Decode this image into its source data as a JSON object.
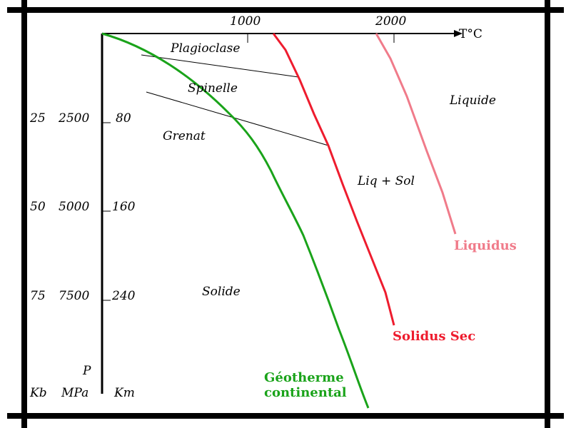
{
  "axes": {
    "temp_label": "T°C",
    "temp_tick_1000": "1000",
    "temp_tick_2000": "2000",
    "pressure_label": "P",
    "unit_kb": "Kb",
    "unit_mpa": "MPa",
    "unit_km": "Km",
    "rows": [
      {
        "kb": "25",
        "mpa": "2500",
        "km": "80"
      },
      {
        "kb": "50",
        "mpa": "5000",
        "km": "160"
      },
      {
        "kb": "75",
        "mpa": "7500",
        "km": "240"
      }
    ]
  },
  "fields": {
    "plagioclase": "Plagioclase",
    "spinelle": "Spinelle",
    "grenat": "Grenat",
    "liquide": "Liquide",
    "liq_sol": "Liq + Sol",
    "solide": "Solide"
  },
  "curves": {
    "liquidus": "Liquidus",
    "solidus": "Solidus Sec",
    "geotherm_line1": "Géotherme",
    "geotherm_line2": "continental"
  },
  "colors": {
    "liquidus": "#f07b8a",
    "solidus": "#ee1c2e",
    "geotherm": "#1aa31a",
    "frame": "#000000"
  }
}
